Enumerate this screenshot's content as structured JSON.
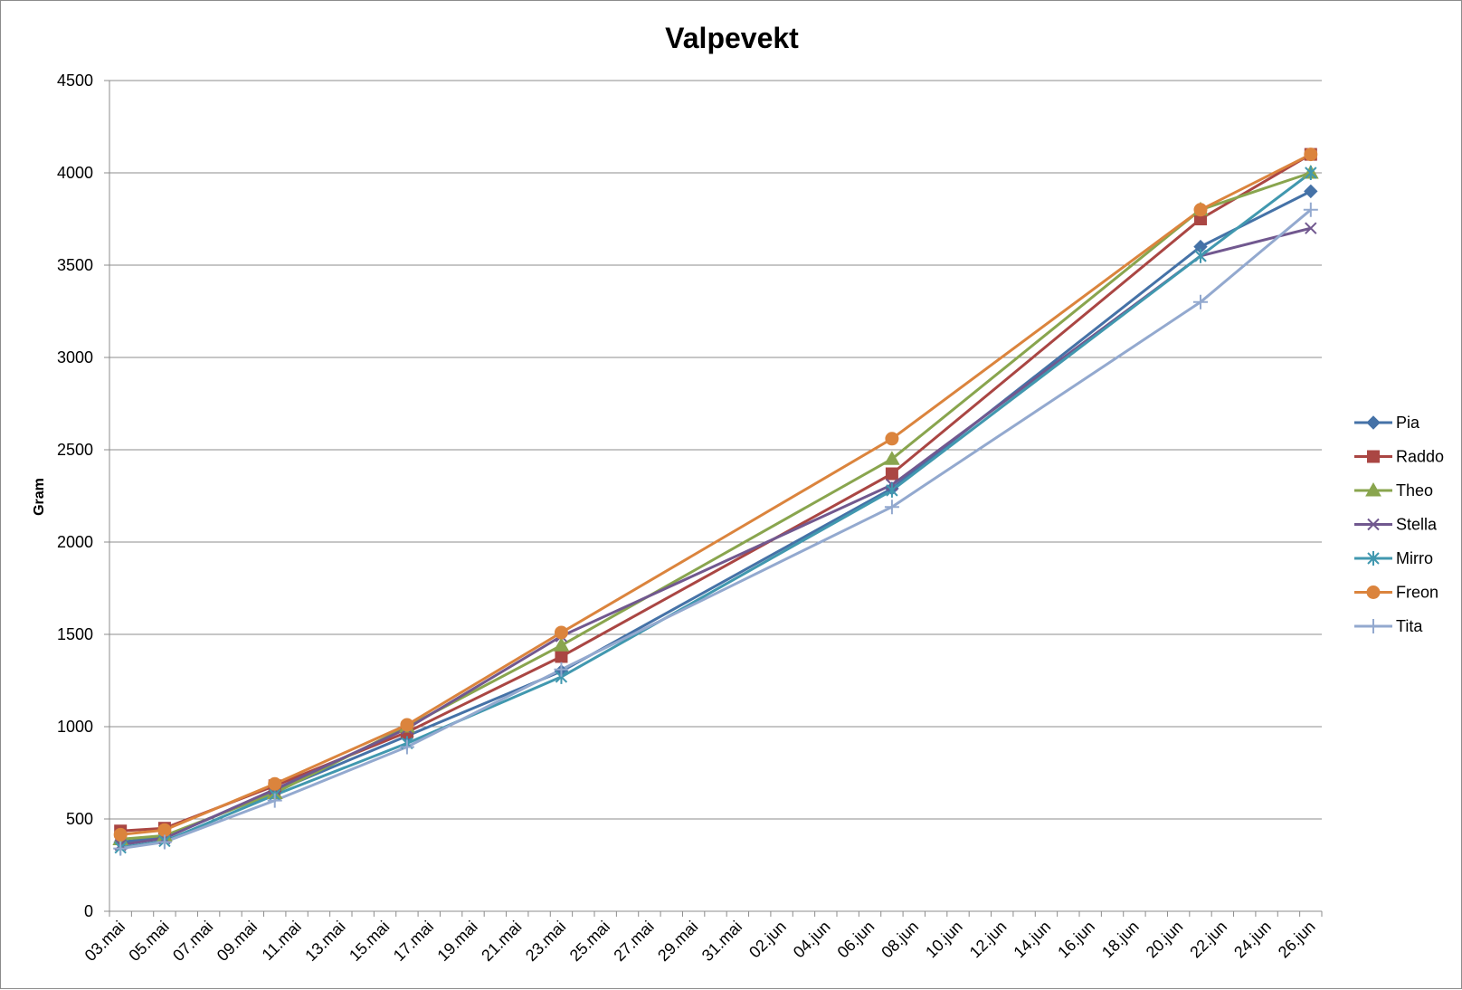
{
  "chart_data": {
    "type": "line",
    "title": "Valpevekt",
    "xlabel": "",
    "ylabel": "Gram",
    "ylim": [
      0,
      4500
    ],
    "yticks": [
      0,
      500,
      1000,
      1500,
      2000,
      2500,
      3000,
      3500,
      4000,
      4500
    ],
    "x_tick_labels": [
      "03.mai",
      "05.mai",
      "07.mai",
      "09.mai",
      "11.mai",
      "13.mai",
      "15.mai",
      "17.mai",
      "19.mai",
      "21.mai",
      "23.mai",
      "25.mai",
      "27.mai",
      "29.mai",
      "31.mai",
      "02.jun",
      "04.jun",
      "06.jun",
      "08.jun",
      "10.jun",
      "12.jun",
      "14.jun",
      "16.jun",
      "18.jun",
      "20.jun",
      "22.jun",
      "24.jun",
      "26.jun"
    ],
    "xlim": [
      "2014-05-03",
      "2014-06-26"
    ],
    "x": [
      "2014-05-03",
      "2014-05-05",
      "2014-05-10",
      "2014-05-16",
      "2014-05-23",
      "2014-06-07",
      "2014-06-21",
      "2014-06-26"
    ],
    "grid": "horizontal",
    "legend_position": "right",
    "series": [
      {
        "name": "Pia",
        "color": "#4572A7",
        "marker": "diamond",
        "values": [
          375,
          400,
          650,
          950,
          1300,
          2290,
          3600,
          3900
        ]
      },
      {
        "name": "Raddo",
        "color": "#AA4643",
        "marker": "square",
        "values": [
          435,
          450,
          680,
          970,
          1380,
          2370,
          3750,
          4100
        ]
      },
      {
        "name": "Theo",
        "color": "#89A54E",
        "marker": "triangle",
        "values": [
          390,
          410,
          640,
          1000,
          1440,
          2450,
          3800,
          4000
        ]
      },
      {
        "name": "Stella",
        "color": "#71588F",
        "marker": "x",
        "values": [
          360,
          395,
          660,
          990,
          1490,
          2310,
          3550,
          3700
        ]
      },
      {
        "name": "Mirro",
        "color": "#4198AF",
        "marker": "star",
        "values": [
          345,
          380,
          630,
          910,
          1270,
          2280,
          3550,
          4000
        ]
      },
      {
        "name": "Freon",
        "color": "#DB843D",
        "marker": "circle",
        "values": [
          415,
          440,
          690,
          1010,
          1510,
          2560,
          3800,
          4100
        ]
      },
      {
        "name": "Tita",
        "color": "#93A9CF",
        "marker": "plus",
        "values": [
          340,
          375,
          600,
          890,
          1310,
          2190,
          3300,
          3800
        ]
      }
    ]
  }
}
